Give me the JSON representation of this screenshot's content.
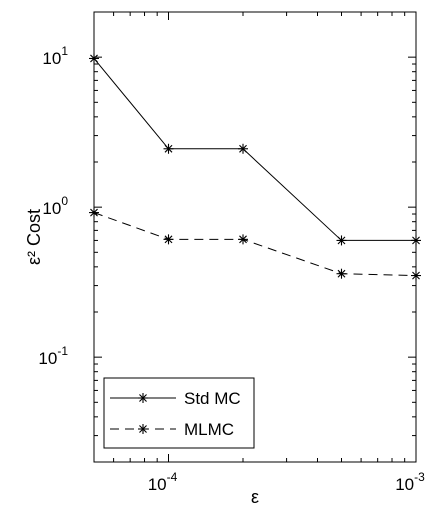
{
  "chart_data": {
    "type": "line",
    "xlabel": "ε",
    "ylabel": "ε² Cost",
    "x_scale": "log",
    "y_scale": "log",
    "xlim": [
      5e-05,
      0.001
    ],
    "ylim": [
      0.02,
      20
    ],
    "x_ticks": [
      {
        "value": 0.0001,
        "base": "10",
        "exp": "-4"
      },
      {
        "value": 0.001,
        "base": "10",
        "exp": "-3"
      }
    ],
    "y_ticks": [
      {
        "value": 0.1,
        "base": "10",
        "exp": "-1"
      },
      {
        "value": 1,
        "base": "10",
        "exp": "0"
      },
      {
        "value": 10,
        "base": "10",
        "exp": "1"
      }
    ],
    "grid": false,
    "legend_position": "bottom-left",
    "marker": "asterisk",
    "series": [
      {
        "name": "Std MC",
        "line_style": "solid",
        "x": [
          5e-05,
          0.0001,
          0.0002,
          0.0005,
          0.001
        ],
        "y": [
          9.8,
          2.45,
          2.45,
          0.6,
          0.6
        ]
      },
      {
        "name": "MLMC",
        "line_style": "dashed",
        "x": [
          5e-05,
          0.0001,
          0.0002,
          0.0005,
          0.001
        ],
        "y": [
          0.92,
          0.61,
          0.61,
          0.36,
          0.35
        ]
      }
    ]
  }
}
